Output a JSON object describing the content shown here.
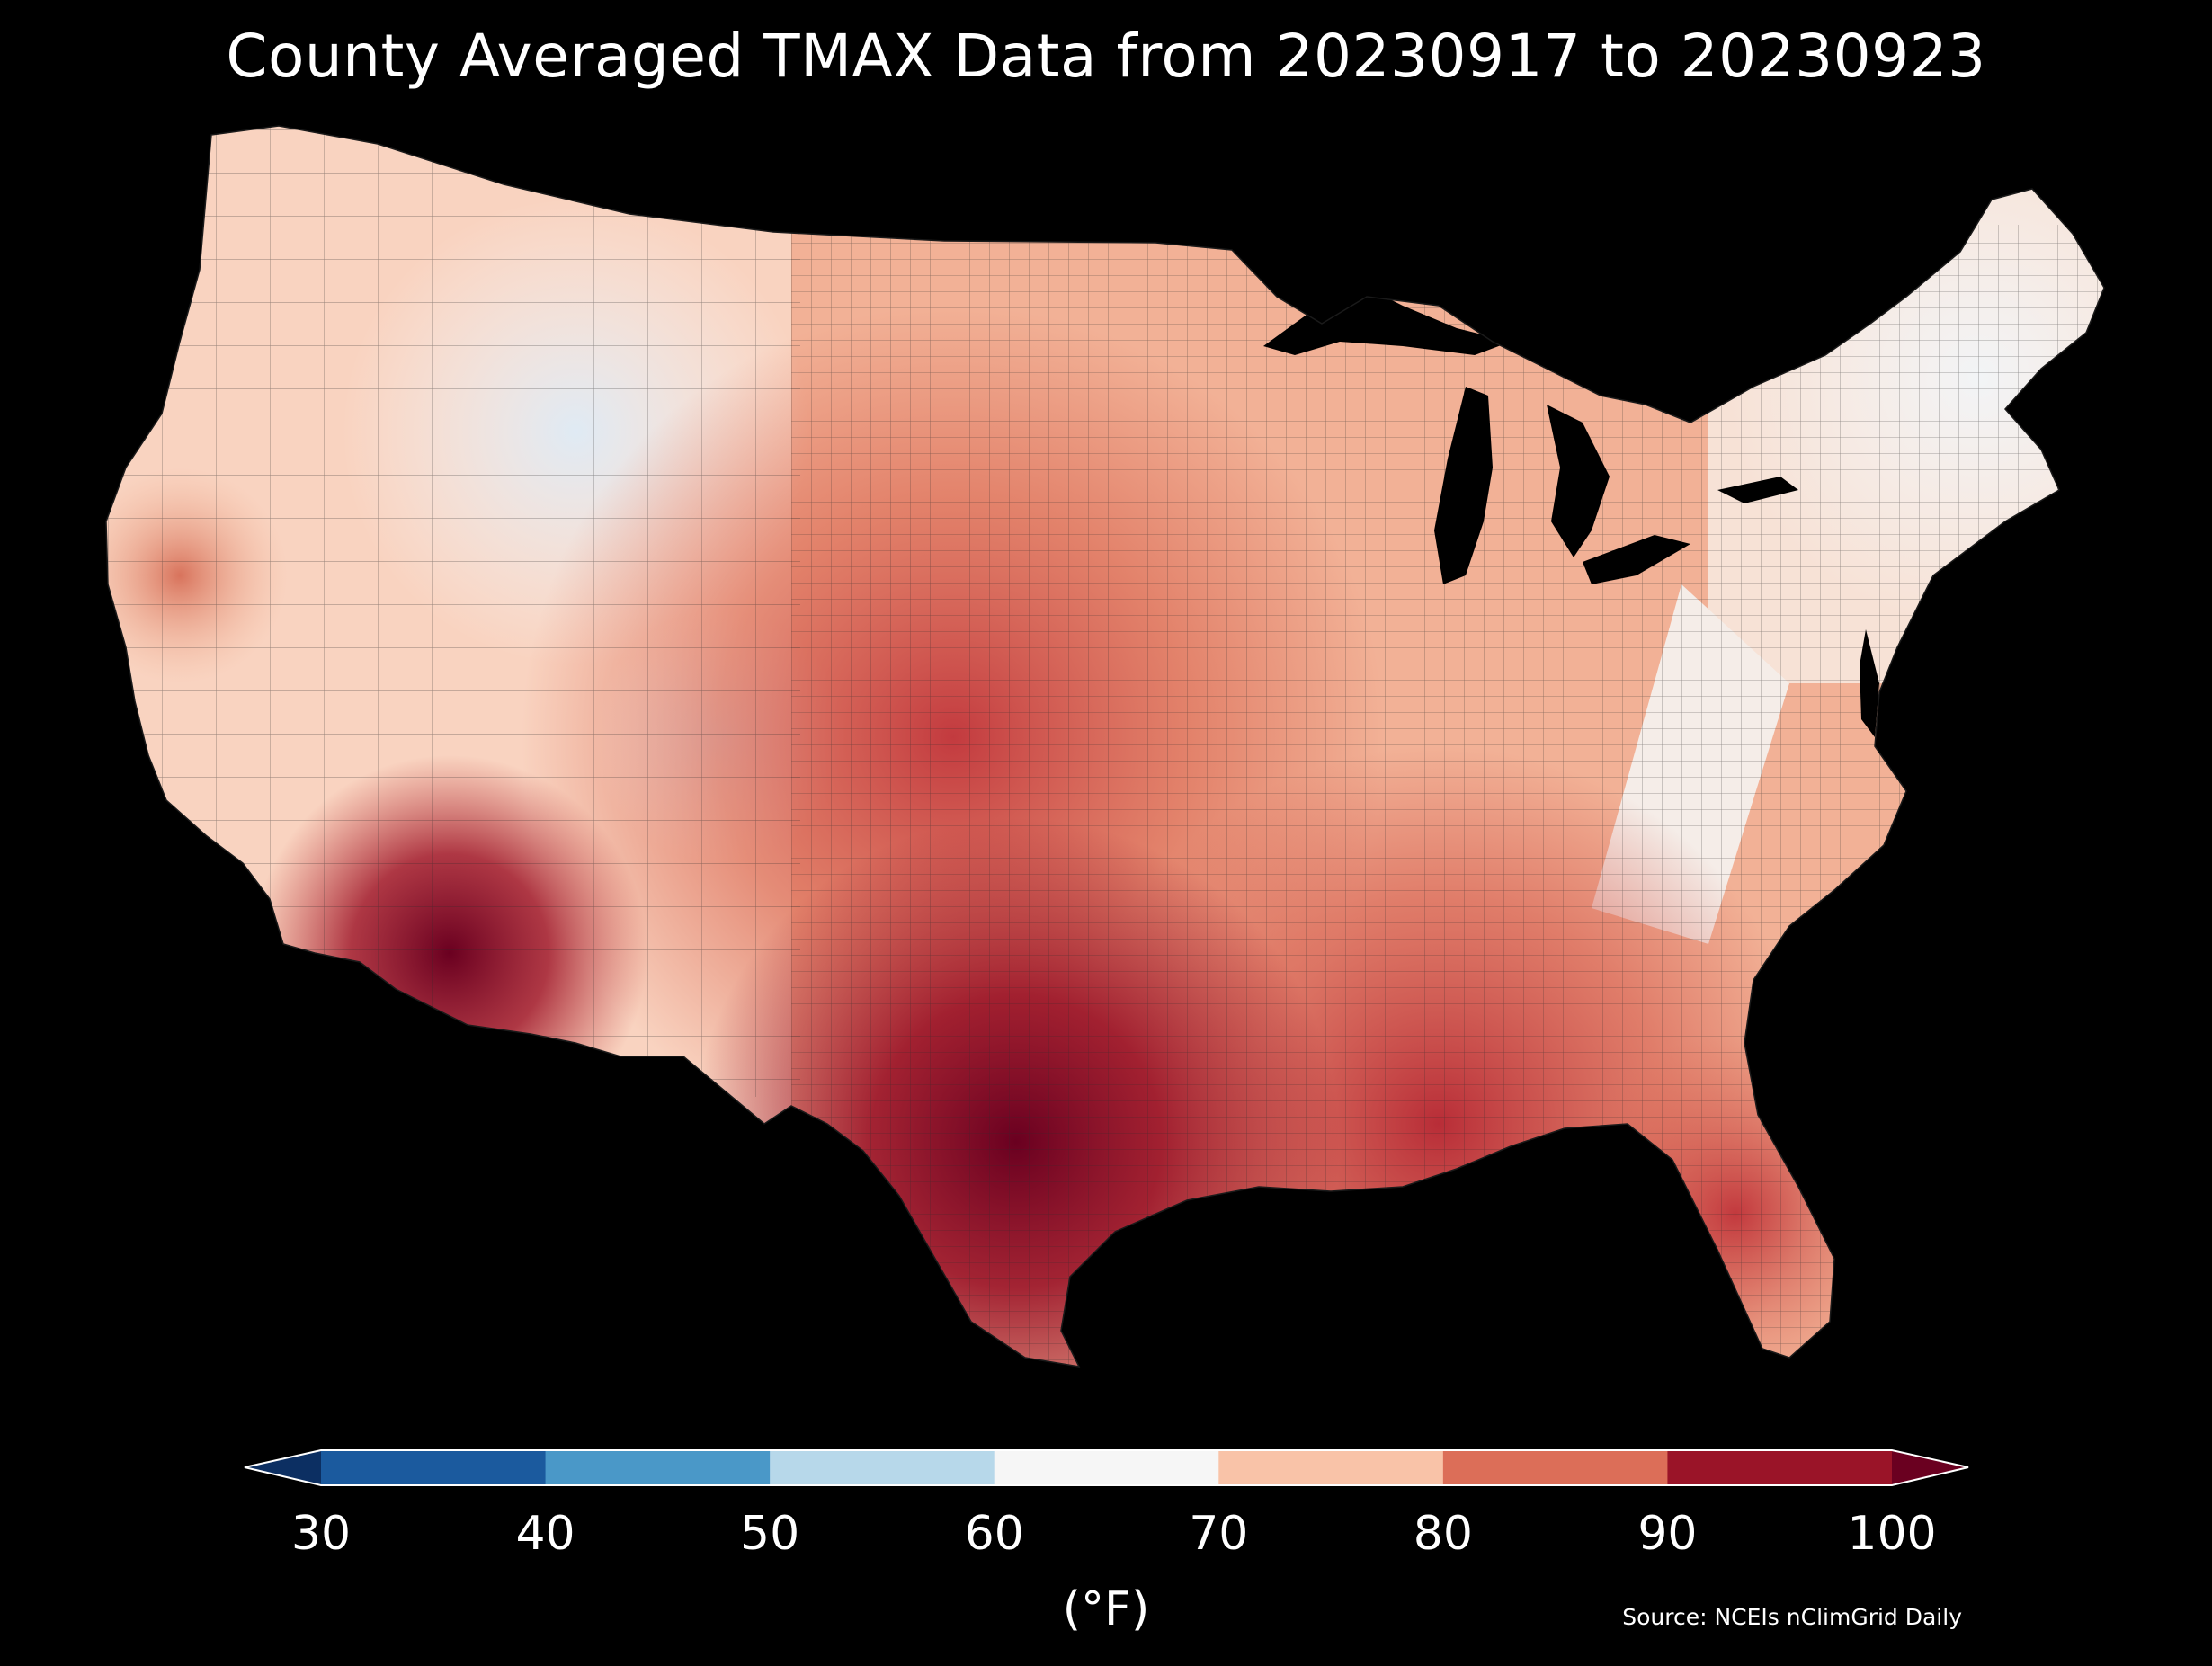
{
  "title": "County Averaged TMAX Data from 20230917 to 20230923",
  "colorbar": {
    "unit_label": "(°F)",
    "ticks": [
      "30",
      "40",
      "50",
      "60",
      "70",
      "80",
      "90",
      "100"
    ],
    "bins": [
      {
        "from": 30,
        "to": 40,
        "color": "#1b5a9e"
      },
      {
        "from": 40,
        "to": 50,
        "color": "#4a98c8"
      },
      {
        "from": 50,
        "to": 60,
        "color": "#b7d8ea"
      },
      {
        "from": 60,
        "to": 70,
        "color": "#f6f6f6"
      },
      {
        "from": 70,
        "to": 80,
        "color": "#f9c3a8"
      },
      {
        "from": 80,
        "to": 90,
        "color": "#dc6e58"
      },
      {
        "from": 90,
        "to": 100,
        "color": "#9a1428"
      }
    ],
    "extend_low_color": "#0c2f62",
    "extend_high_color": "#6a0020"
  },
  "source": "Source: NCEIs nClimGrid Daily",
  "colors": {
    "background": "#000000",
    "county_border": "#2a2a2a"
  }
}
